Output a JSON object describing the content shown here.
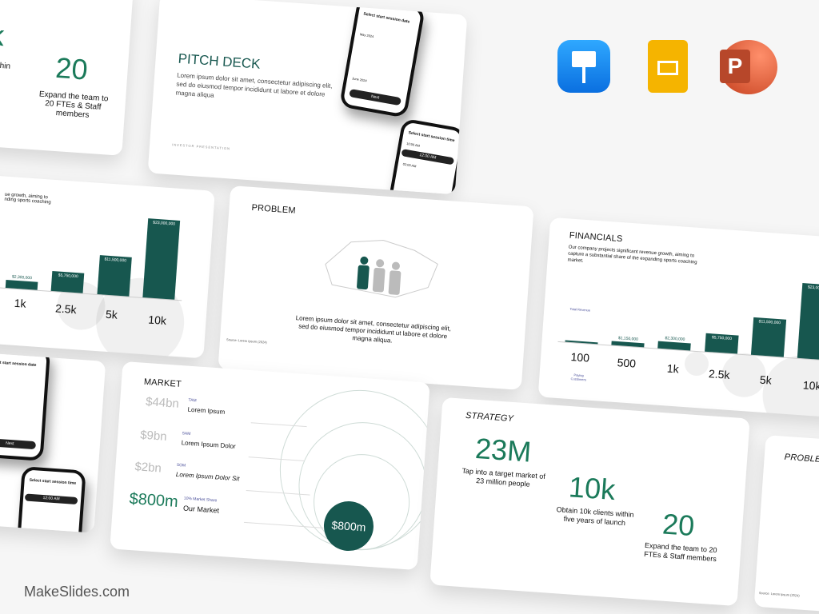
{
  "brand": "MakeSlides.com",
  "app_icons": [
    {
      "name": "keynote-icon",
      "color": "#1a8cf0"
    },
    {
      "name": "google-slides-icon",
      "color": "#f5b400"
    },
    {
      "name": "powerpoint-icon",
      "color": "#d24726"
    }
  ],
  "colors": {
    "accent": "#17574f",
    "accent_text": "#1b7a5a",
    "muted_label": "#4a4f9a"
  },
  "strategy": {
    "title": "STRATEGY",
    "stats": [
      {
        "value": "23M",
        "text": "Tap into a target market of 23 million people"
      },
      {
        "value": "10k",
        "text": "Obtain 10k clients within five years of launch"
      },
      {
        "value": "20",
        "text": "Expand the team to 20 FTEs & Staff members"
      }
    ],
    "partial_top": {
      "value_fragment": "k",
      "text_fragment": "s within\nnch"
    }
  },
  "pitch": {
    "title": "PITCH DECK",
    "body": "Lorem ipsum dolor sit amet, consectetur adipiscing elit, sed do eiusmod tempor incididunt ut labore et dolore magna aliqua",
    "footer": "INVESTOR PRESENTATION",
    "phone1": {
      "heading": "Select start session date",
      "month1": "May 2024",
      "month2": "June 2024",
      "button": "Next"
    },
    "phone2": {
      "heading": "Select start session time",
      "slots": [
        "10:00 AM",
        "12:00 AM",
        "02:00 AM"
      ]
    }
  },
  "financials": {
    "title": "FINANCIALS",
    "body": "Our company projects significant revenue growth, aiming to capture a substantial share of the expanding sports coaching market.",
    "revenue_label": "Total Revenue",
    "customers_label": "Paying Customers",
    "customers": [
      "100",
      "500",
      "1k",
      "2.5k",
      "5k",
      "10k"
    ],
    "revenue": [
      230000,
      1150000,
      2300000,
      5750000,
      11500000,
      23000000
    ],
    "revenue_labels": [
      "",
      "$1,150,000",
      "$2,300,000",
      "$5,750,000",
      "$11,500,000",
      "$23,000,000"
    ],
    "partial_body": "ue growth, aiming to\nnding sports coaching"
  },
  "problem": {
    "title": "PROBLEM",
    "body": "Lorem ipsum dolor sit amet, consectetur adipiscing elit, sed do eiusmod tempor incididunt ut labore et dolore magna aliqua.",
    "source": "Source: Lorem Ipsum (2024)"
  },
  "market": {
    "title": "MARKET",
    "rows": [
      {
        "value": "$44bn",
        "tag": "TAM",
        "label": "Lorem Ipsum"
      },
      {
        "value": "$9bn",
        "tag": "SAM",
        "label": "Lorem Ipsum Dolor"
      },
      {
        "value": "$2bn",
        "tag": "SOM",
        "label": "Lorem Ipsum Dolor Sit"
      },
      {
        "value": "$800m",
        "tag": "10% Market Share",
        "label": "Our Market"
      }
    ],
    "circle_label": "$800m"
  }
}
